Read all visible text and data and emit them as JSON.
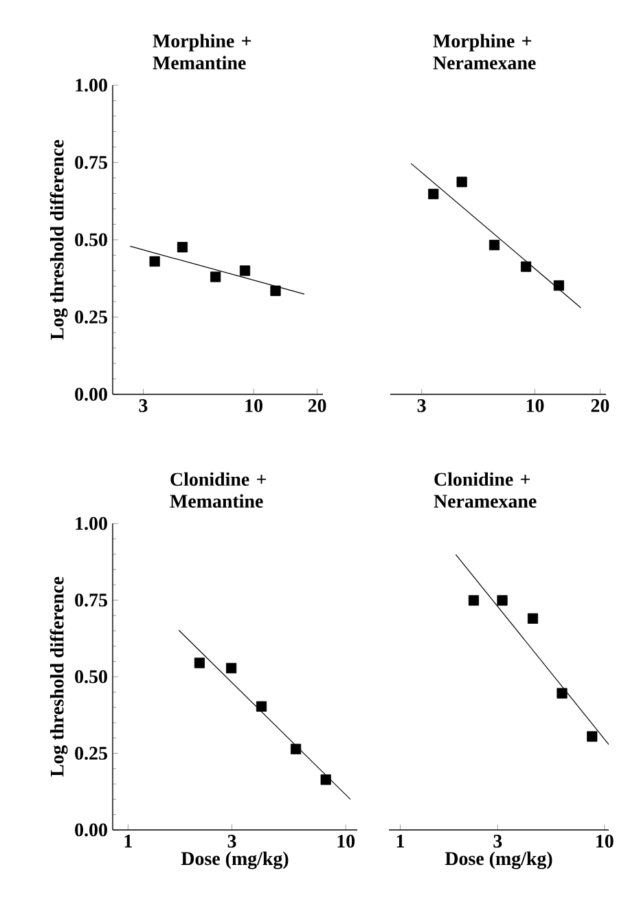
{
  "chart_data": [
    {
      "type": "scatter",
      "title": "Morphine + Memantine",
      "ylabel": "Log threshold difference",
      "log": "x",
      "xlim": [
        2.15,
        21.3
      ],
      "xticks": [
        3,
        10,
        20
      ],
      "ylim": [
        0,
        1
      ],
      "yticks": [
        {
          "value": 0,
          "label": "0.00"
        },
        {
          "value": 0.25,
          "label": "0.25"
        },
        {
          "value": 0.5,
          "label": "0.50"
        },
        {
          "value": 0.75,
          "label": "0.75"
        },
        {
          "value": 1,
          "label": "1.00"
        }
      ],
      "series": [
        {
          "marker": "square",
          "color": "#000000",
          "x": [
            3.4,
            4.6,
            6.6,
            9.1,
            12.7
          ],
          "values": [
            0.43,
            0.476,
            0.38,
            0.4,
            0.335
          ]
        },
        {
          "type": "line",
          "marker": "none",
          "color": "#000000",
          "x": [
            2.6,
            17.4
          ],
          "values": [
            0.479,
            0.324
          ]
        }
      ]
    },
    {
      "type": "scatter",
      "title": "Morphine + Neramexane",
      "log": "x",
      "tick_labels": "x",
      "xlim": [
        2.15,
        21.3
      ],
      "xticks": [
        3,
        10,
        20
      ],
      "ylim": [
        0,
        1
      ],
      "series": [
        {
          "marker": "square",
          "color": "#000000",
          "x": [
            3.4,
            4.6,
            6.5,
            9.1,
            12.9
          ],
          "values": [
            0.648,
            0.687,
            0.483,
            0.413,
            0.352
          ]
        },
        {
          "type": "line",
          "marker": "none",
          "color": "#000000",
          "x": [
            2.68,
            16.3
          ],
          "values": [
            0.747,
            0.28
          ]
        }
      ]
    },
    {
      "type": "scatter",
      "title": "Clonidine + Memantine",
      "xlabel": "Dose (mg/kg)",
      "ylabel": "Log threshold difference",
      "log": "x",
      "xlim": [
        0.85,
        11.3
      ],
      "xticks": [
        1,
        3,
        10
      ],
      "ylim": [
        0,
        1
      ],
      "yticks": [
        {
          "value": 0,
          "label": "0.00"
        },
        {
          "value": 0.25,
          "label": "0.25"
        },
        {
          "value": 0.5,
          "label": "0.50"
        },
        {
          "value": 0.75,
          "label": "0.75"
        },
        {
          "value": 1,
          "label": "1.00"
        }
      ],
      "series": [
        {
          "marker": "square",
          "color": "#000000",
          "x": [
            2.13,
            2.98,
            4.1,
            5.9,
            8.1
          ],
          "values": [
            0.545,
            0.528,
            0.403,
            0.264,
            0.164
          ]
        },
        {
          "type": "line",
          "marker": "none",
          "color": "#000000",
          "x": [
            1.71,
            10.5
          ],
          "values": [
            0.652,
            0.1
          ]
        }
      ]
    },
    {
      "type": "scatter",
      "title": "Clonidine + Neramexane",
      "xlabel": "Dose (mg/kg)",
      "log": "x",
      "tick_labels": "x",
      "xlim": [
        0.88,
        10.5
      ],
      "xticks": [
        1,
        3,
        10
      ],
      "ylim": [
        0,
        1
      ],
      "series": [
        {
          "marker": "square",
          "color": "#000000",
          "x": [
            2.29,
            3.16,
            4.46,
            6.2,
            8.7
          ],
          "values": [
            0.749,
            0.749,
            0.69,
            0.446,
            0.305
          ]
        },
        {
          "type": "line",
          "marker": "none",
          "color": "#000000",
          "x": [
            1.87,
            10.5
          ],
          "values": [
            0.899,
            0.279
          ]
        }
      ]
    }
  ]
}
